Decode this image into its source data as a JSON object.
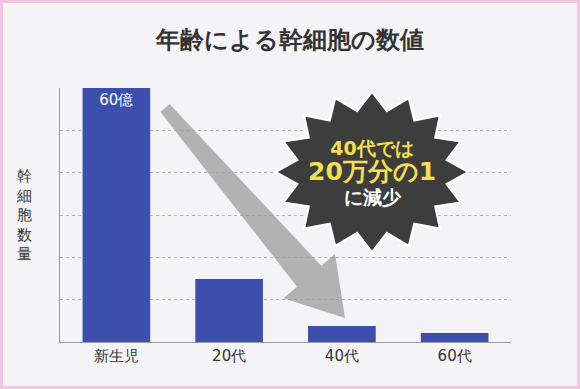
{
  "chart_data": {
    "type": "bar",
    "title": "年齢による幹細胞の数値",
    "y_label": "幹細胞数量",
    "categories": [
      "新生児",
      "20代",
      "40代",
      "60代"
    ],
    "values": [
      60,
      14.9,
      3.8,
      2.1
    ],
    "value_labels": [
      "60億",
      null,
      null,
      null
    ],
    "data_labels": true,
    "color": "#3c4fad",
    "ylim": [
      0,
      60
    ],
    "yticks": [
      0,
      10,
      20,
      30,
      40,
      50,
      60
    ],
    "tick_labels": "x",
    "grid": true,
    "annotation": [
      "40代では",
      "20万分の1",
      "に減少"
    ]
  }
}
